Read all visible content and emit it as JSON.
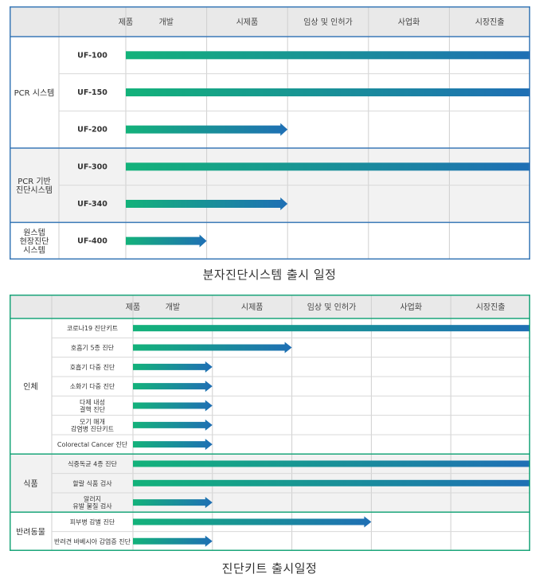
{
  "stages": [
    "개발",
    "시제품",
    "임상 및 인허가",
    "사업화",
    "시장진출"
  ],
  "colors": {
    "blue_border": "#3a79b7",
    "green_border": "#1aa57a",
    "header_bg": "#e9e9e9",
    "alt_bg": "#f2f2f2",
    "arrow_start": "#13b27a",
    "arrow_end": "#1f6fb5"
  },
  "chart1": {
    "product_header": "제품",
    "caption": "분자진단시스템 출시 일정",
    "groups": [
      {
        "label": "PCR 시스템",
        "products": [
          {
            "name": "UF-100",
            "reach": 5
          },
          {
            "name": "UF-150",
            "reach": 5
          },
          {
            "name": "UF-200",
            "reach": 2
          }
        ]
      },
      {
        "label": "PCR 기반\n진단시스템",
        "products": [
          {
            "name": "UF-300",
            "reach": 5
          },
          {
            "name": "UF-340",
            "reach": 2
          }
        ]
      },
      {
        "label": "원스텝\n현장진단\n시스템",
        "products": [
          {
            "name": "UF-400",
            "reach": 1
          }
        ]
      }
    ]
  },
  "chart2": {
    "product_header": "제품",
    "caption": "진단키트 출시일정",
    "groups": [
      {
        "label": "인체",
        "products": [
          {
            "name": "코로나19 진단키트",
            "reach": 5
          },
          {
            "name": "호흡기 5종 진단",
            "reach": 2
          },
          {
            "name": "호흡기 다중 진단",
            "reach": 1
          },
          {
            "name": "소화기 다중 진단",
            "reach": 1
          },
          {
            "name": "다제 내성\n결핵 진단",
            "reach": 1
          },
          {
            "name": "모기 매개\n감염병 진단키트",
            "reach": 1
          },
          {
            "name": "Colorectal Cancer 진단",
            "reach": 1
          }
        ]
      },
      {
        "label": "식품",
        "products": [
          {
            "name": "식중독균 4종 진단",
            "reach": 5
          },
          {
            "name": "할랄 식품 검사",
            "reach": 5
          },
          {
            "name": "알러지\n유발 물질 검사",
            "reach": 1
          }
        ]
      },
      {
        "label": "반려동물",
        "products": [
          {
            "name": "피부병 감별 진단",
            "reach": 3
          },
          {
            "name": "반려견 바베시아 감염증 진단",
            "reach": 1
          }
        ]
      }
    ]
  }
}
